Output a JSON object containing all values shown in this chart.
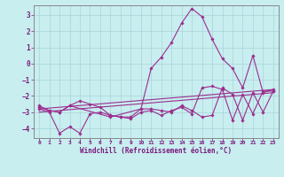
{
  "xlabel": "Windchill (Refroidissement éolien,°C)",
  "ylabel": "",
  "bg_color": "#c8eef0",
  "line_color": "#9B2D8E",
  "grid_color": "#aad4d8",
  "spine_color": "#888888",
  "label_color": "#7B1A7B",
  "xlim": [
    -0.5,
    23.5
  ],
  "ylim": [
    -4.6,
    3.6
  ],
  "yticks": [
    -4,
    -3,
    -2,
    -1,
    0,
    1,
    2,
    3
  ],
  "xticks": [
    0,
    1,
    2,
    3,
    4,
    5,
    6,
    7,
    8,
    9,
    10,
    11,
    12,
    13,
    14,
    15,
    16,
    17,
    18,
    19,
    20,
    21,
    22,
    23
  ],
  "lines": [
    {
      "x": [
        0,
        1,
        2,
        3,
        4,
        5,
        6,
        7,
        8,
        9,
        10,
        11,
        12,
        13,
        14,
        15,
        16,
        17,
        18,
        19,
        20,
        21,
        22,
        23
      ],
      "y": [
        -2.6,
        -2.9,
        -3.0,
        -2.6,
        -2.3,
        -2.5,
        -2.7,
        -3.2,
        -3.3,
        -3.3,
        -2.8,
        -2.8,
        -2.9,
        -3.0,
        -2.6,
        -2.9,
        -3.3,
        -3.2,
        -1.5,
        -1.9,
        -3.5,
        -1.8,
        -3.0,
        -1.7
      ],
      "has_markers": true
    },
    {
      "x": [
        0,
        1,
        2,
        3,
        4,
        5,
        6,
        7,
        8,
        9,
        10,
        11,
        12,
        13,
        14,
        15,
        16,
        17,
        18,
        19,
        20,
        21,
        22,
        23
      ],
      "y": [
        -2.8,
        -3.0,
        -4.3,
        -3.9,
        -4.3,
        -3.1,
        -3.0,
        -3.2,
        -3.3,
        -3.4,
        -3.0,
        -2.9,
        -3.2,
        -2.9,
        -2.7,
        -3.1,
        -1.5,
        -1.4,
        -1.6,
        -3.5,
        -1.9,
        -3.1,
        -1.7,
        -1.7
      ],
      "has_markers": true
    },
    {
      "x": [
        0,
        1,
        2,
        3,
        7,
        10,
        11,
        12,
        13,
        14,
        15,
        16,
        17,
        18,
        19,
        20,
        21,
        22,
        23
      ],
      "y": [
        -2.7,
        -2.9,
        -3.0,
        -2.6,
        -3.3,
        -2.8,
        -0.3,
        0.4,
        1.3,
        2.5,
        3.4,
        2.9,
        1.5,
        0.3,
        -0.3,
        -1.5,
        0.5,
        -1.8,
        -1.6
      ],
      "has_markers": true
    },
    {
      "x": [
        0,
        23
      ],
      "y": [
        -2.8,
        -1.6
      ],
      "has_markers": false
    },
    {
      "x": [
        0,
        23
      ],
      "y": [
        -3.0,
        -1.8
      ],
      "has_markers": false
    }
  ]
}
